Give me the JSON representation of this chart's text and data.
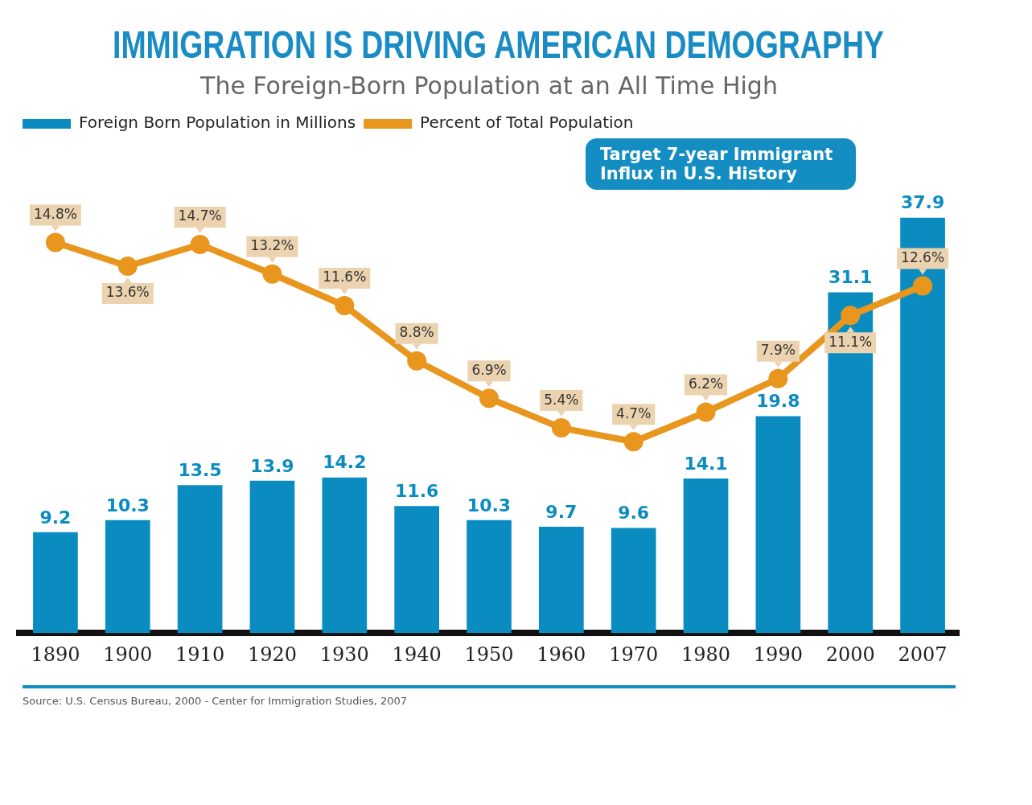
{
  "chart_data": {
    "type": "bar",
    "title": "IMMIGRATION IS DRIVING AMERICAN DEMOGRAPHY",
    "subtitle": "The Foreign-Born Population at an All Time High",
    "categories": [
      "1890",
      "1900",
      "1910",
      "1920",
      "1930",
      "1940",
      "1950",
      "1960",
      "1970",
      "1980",
      "1990",
      "2000",
      "2007"
    ],
    "series": [
      {
        "name": "Foreign Born Population in Millions",
        "color": "#0b8cc1",
        "values": [
          9.2,
          10.3,
          13.5,
          13.9,
          14.2,
          11.6,
          10.3,
          9.7,
          9.6,
          14.1,
          19.8,
          31.1,
          37.9
        ]
      },
      {
        "name": "Percent of Total Population",
        "type": "line",
        "axis": "y2",
        "color": "#e8961e",
        "values": [
          14.8,
          13.6,
          14.7,
          13.2,
          11.6,
          8.8,
          6.9,
          5.4,
          4.7,
          6.2,
          7.9,
          11.1,
          12.6
        ],
        "value_labels": [
          "14.8%",
          "13.6%",
          "14.7%",
          "13.2%",
          "11.6%",
          "8.8%",
          "6.9%",
          "5.4%",
          "4.7%",
          "6.2%",
          "7.9%",
          "11.1%",
          "12.6%"
        ]
      }
    ],
    "data_labels": true,
    "legend": "top left",
    "grid": false,
    "tick_labels": "x",
    "marker": "circle",
    "annotations": [
      "Target 7-year Immigrant Influx in U.S. History",
      "Source: U.S. Census Bureau, 2000 - Center for Immigration Studies, 2007"
    ]
  }
}
